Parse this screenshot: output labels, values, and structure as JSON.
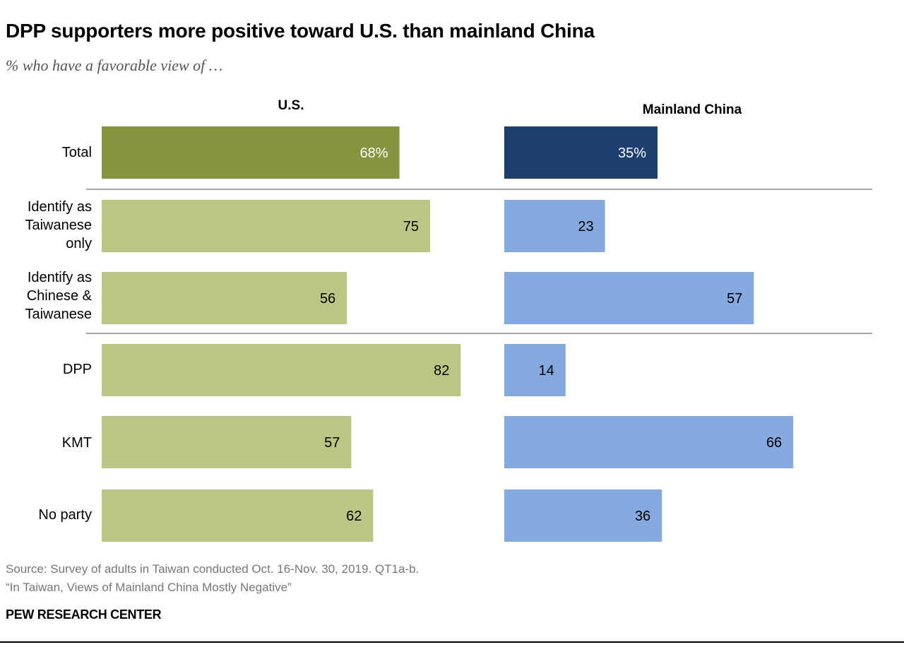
{
  "title": "DPP supporters more positive toward U.S. than mainland China",
  "subtitle": "% who have a favorable view of …",
  "source": [
    "Source: Survey of adults in Taiwan conducted Oct. 16-Nov. 30, 2019. QT1a-b.",
    "“In Taiwan, Views of Mainland China Mostly Negative”"
  ],
  "org": "PEW RESEARCH CENTER",
  "chart_data": {
    "type": "bar",
    "orientation": "horizontal",
    "categories": [
      [
        "Total"
      ],
      [
        "Identify as",
        "Taiwanese",
        "only"
      ],
      [
        "Identify as",
        "Chinese &",
        "Taiwanese"
      ],
      [
        "DPP"
      ],
      [
        "KMT"
      ],
      [
        "No party"
      ]
    ],
    "series": [
      {
        "name": "U.S.",
        "values": [
          68,
          75,
          56,
          82,
          57,
          62
        ],
        "labels": [
          "68%",
          "75",
          "56",
          "82",
          "57",
          "62"
        ],
        "colors": [
          "#87933e",
          "#bcc583",
          "#bcc583",
          "#bcc583",
          "#bcc583",
          "#bcc583"
        ],
        "label_colors": [
          "#ffffff",
          "#000000",
          "#000000",
          "#000000",
          "#000000",
          "#000000"
        ]
      },
      {
        "name": "Mainland China",
        "values": [
          35,
          23,
          57,
          14,
          66,
          36
        ],
        "labels": [
          "35%",
          "23",
          "57",
          "14",
          "66",
          "36"
        ],
        "colors": [
          "#1c3f70",
          "#84aadf",
          "#84aadf",
          "#84aadf",
          "#84aadf",
          "#84aadf"
        ],
        "label_colors": [
          "#ffffff",
          "#000000",
          "#000000",
          "#000000",
          "#000000",
          "#000000"
        ]
      }
    ],
    "separators_after": [
      0,
      2
    ],
    "xlim": [
      0,
      100
    ]
  }
}
